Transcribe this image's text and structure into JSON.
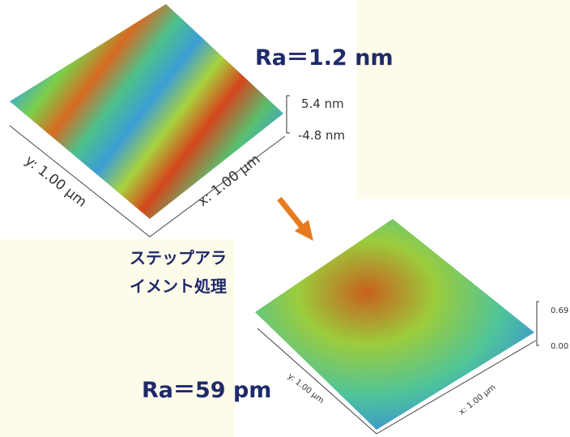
{
  "top_image": {
    "roughness": "Ra＝1.2 nm",
    "z_max": "5.4 nm",
    "z_min": "-4.8 nm",
    "y_axis": "y: 1.00 µm",
    "x_axis": "x: 1.00 µm"
  },
  "process": {
    "lines": [
      "ステップアラ",
      "イメント処理"
    ]
  },
  "bottom_image": {
    "roughness": "Ra＝59 pm",
    "z_max": "0.69",
    "z_min": "0.00",
    "y_axis": "y: 1.00 µm",
    "x_axis": "x: 1.00 µm"
  }
}
